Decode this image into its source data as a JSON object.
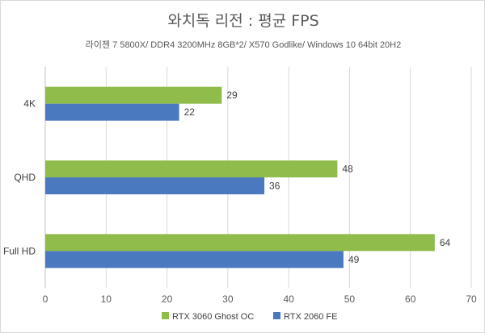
{
  "chart_data": {
    "type": "bar",
    "orientation": "horizontal",
    "title": "와치독 리전 : 평균 FPS",
    "subtitle": "라이젠 7 5800X/ DDR4 3200MHz 8GB*2/ X570 Godlike/ Windows 10 64bit 20H2",
    "categories": [
      "4K",
      "QHD",
      "Full HD"
    ],
    "series": [
      {
        "name": "RTX 3060 Ghost OC",
        "color": "#8fbc4a",
        "values": [
          29,
          48,
          64
        ]
      },
      {
        "name": "RTX 2060 FE",
        "color": "#4a79c0",
        "values": [
          22,
          36,
          49
        ]
      }
    ],
    "xlim": [
      0,
      70
    ],
    "xticks": [
      0,
      10,
      20,
      30,
      40,
      50,
      60,
      70
    ],
    "grid": true,
    "legend": "bottom"
  }
}
